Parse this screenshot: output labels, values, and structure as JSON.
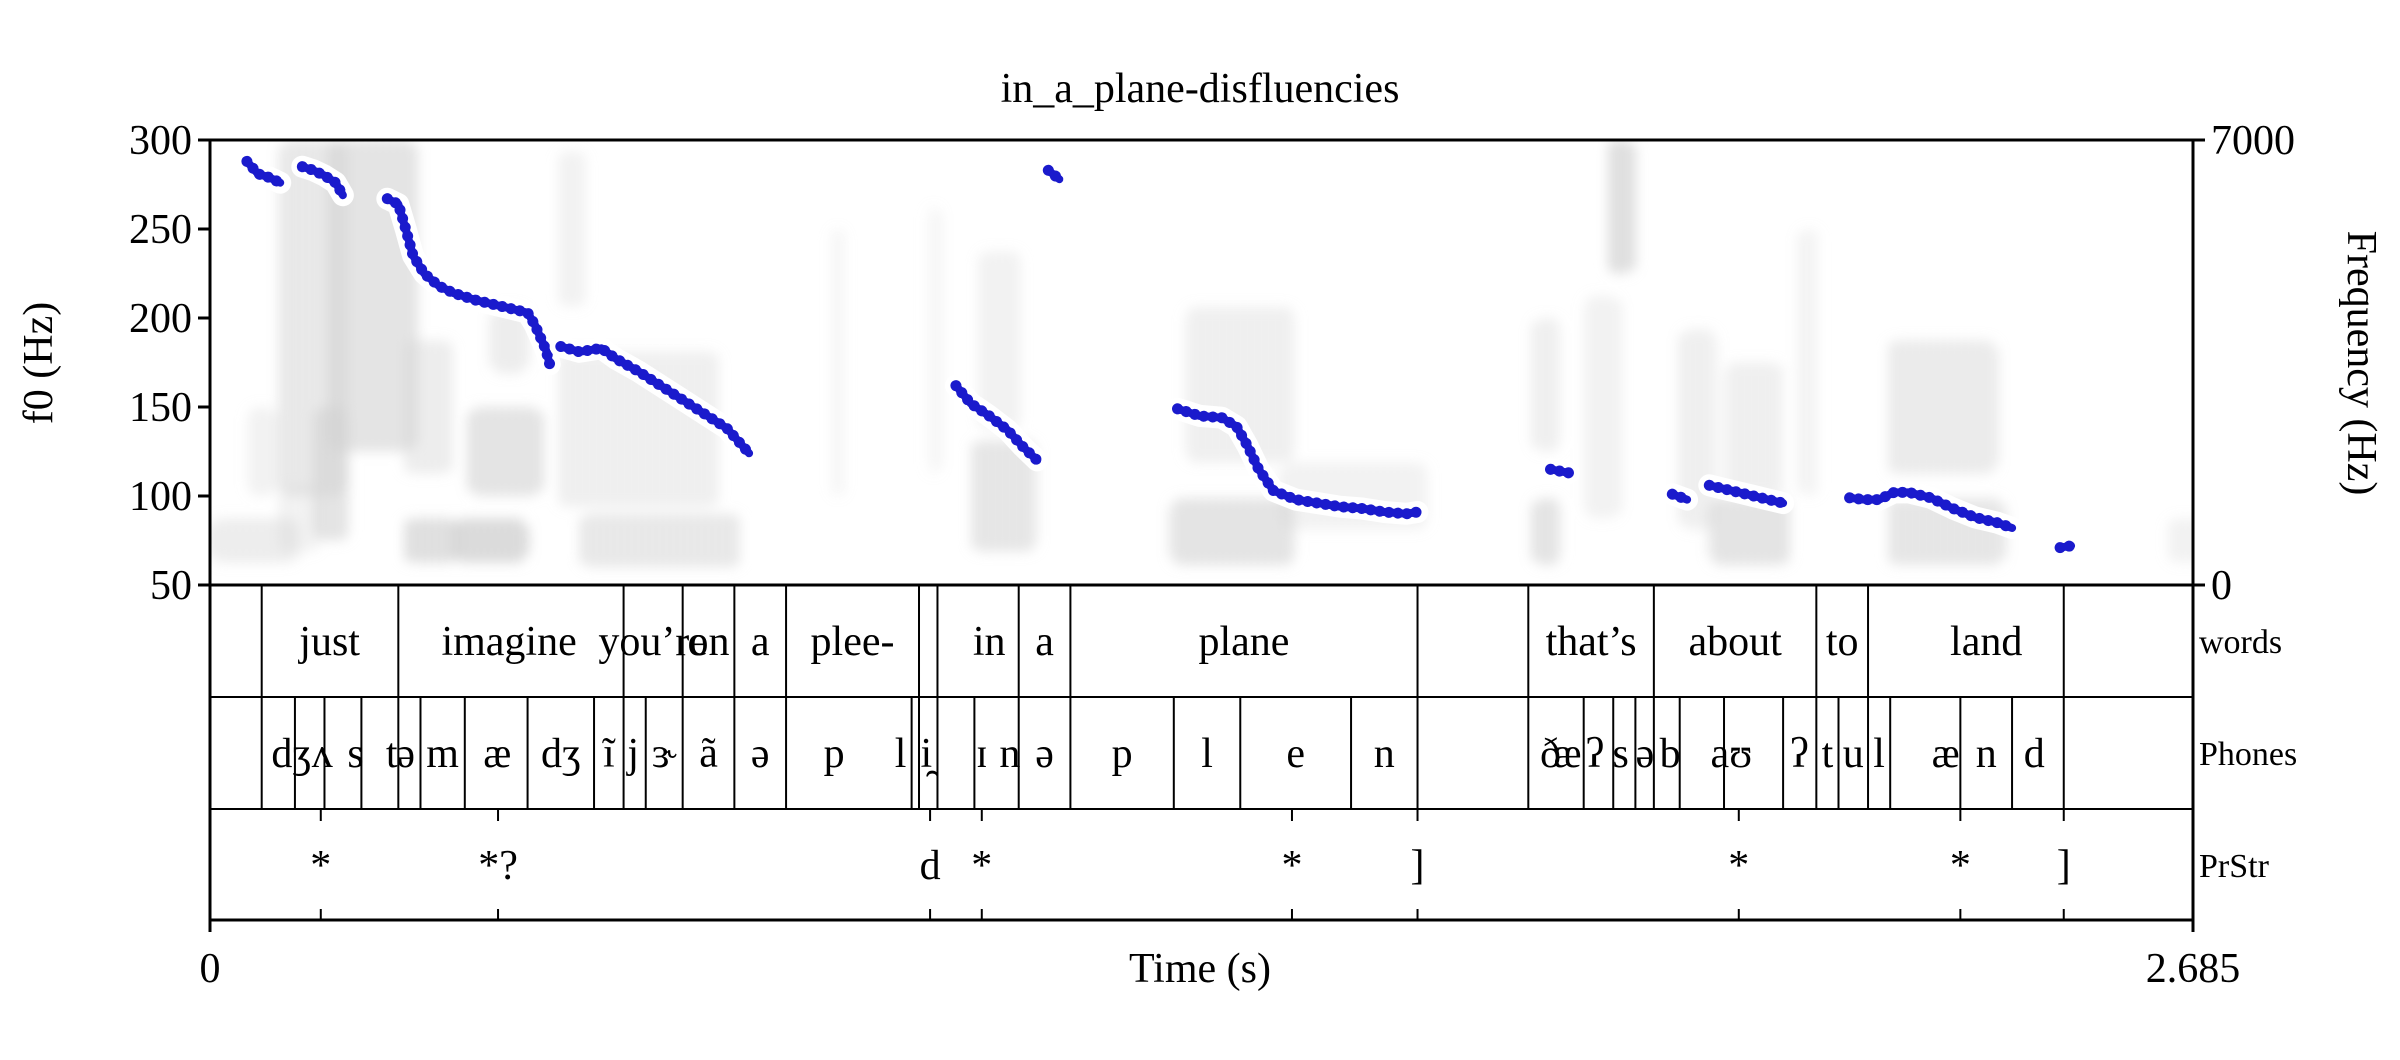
{
  "figure": {
    "title": "in_a_plane-disfluencies",
    "left_axis_label": "f0 (Hz)",
    "right_axis_label": "Frequency (Hz)",
    "x_axis_label": "Time (s)",
    "x_start_label": "0",
    "x_end_label": "2.685",
    "tier_names": [
      "words",
      "Phones",
      "PrStr"
    ]
  },
  "chart_data": {
    "type": "scatter",
    "title": "in_a_plane-disfluencies",
    "xlabel": "Time (s)",
    "ylabel": "f0 (Hz)",
    "ylabel_right": "Frequency (Hz)",
    "xlim": [
      0,
      2.685
    ],
    "ylim": [
      50,
      300
    ],
    "ylim_right": [
      0,
      7000
    ],
    "yticks": [
      50,
      100,
      150,
      200,
      250,
      300
    ],
    "yticks_right": [
      0,
      7000
    ],
    "background": "spectrogram",
    "colors": {
      "f0": "#1a1acc",
      "halo": "#ffffff",
      "spectrogram": "#333333"
    },
    "f0_segments": [
      {
        "x": [
          0.05,
          0.065,
          0.08,
          0.095
        ],
        "y": [
          288,
          281,
          279,
          276
        ]
      },
      {
        "x": [
          0.125,
          0.14,
          0.155,
          0.17,
          0.18
        ],
        "y": [
          285,
          283,
          280,
          276,
          269
        ]
      },
      {
        "x": [
          0.24,
          0.255,
          0.265,
          0.275,
          0.29,
          0.31,
          0.33,
          0.36,
          0.39,
          0.41,
          0.43,
          0.44,
          0.455,
          0.46
        ],
        "y": [
          267,
          264,
          250,
          235,
          225,
          218,
          214,
          210,
          207,
          205,
          203,
          196,
          182,
          174
        ]
      },
      {
        "x": [
          0.475,
          0.5,
          0.53,
          0.55,
          0.58,
          0.61,
          0.64,
          0.67,
          0.7,
          0.73
        ],
        "y": [
          184,
          181,
          183,
          177,
          170,
          162,
          154,
          146,
          138,
          124
        ]
      },
      {
        "x": [
          1.01,
          1.03,
          1.055,
          1.08,
          1.1,
          1.12
        ],
        "y": [
          162,
          152,
          145,
          137,
          128,
          120
        ]
      },
      {
        "x": [
          1.135,
          1.15
        ],
        "y": [
          283,
          278
        ]
      },
      {
        "x": [
          1.31,
          1.34,
          1.37,
          1.39,
          1.405,
          1.42,
          1.44,
          1.47,
          1.5,
          1.53,
          1.56,
          1.59,
          1.62,
          1.635
        ],
        "y": [
          149,
          145,
          144,
          139,
          128,
          115,
          103,
          98,
          96,
          94,
          93,
          91,
          90,
          91
        ]
      },
      {
        "x": [
          1.815,
          1.84
        ],
        "y": [
          115,
          113
        ]
      },
      {
        "x": [
          1.98,
          2.0
        ],
        "y": [
          101,
          98
        ]
      },
      {
        "x": [
          2.03,
          2.05,
          2.07,
          2.09,
          2.11,
          2.13
        ],
        "y": [
          106,
          104,
          102,
          100,
          98,
          96
        ]
      },
      {
        "x": [
          2.22,
          2.24,
          2.26,
          2.28,
          2.3,
          2.33,
          2.36,
          2.39,
          2.42,
          2.44
        ],
        "y": [
          99,
          98,
          98,
          102,
          102,
          99,
          93,
          88,
          85,
          82
        ]
      },
      {
        "x": [
          2.505,
          2.52
        ],
        "y": [
          71,
          72
        ]
      }
    ],
    "tiers": [
      {
        "name": "words",
        "boundaries": [
          0.07,
          0.255,
          0.56,
          0.64,
          0.71,
          0.78,
          0.96,
          0.985,
          1.095,
          1.165,
          1.635,
          1.785,
          1.955,
          2.175,
          2.245,
          2.51
        ],
        "labels": [
          {
            "t": 0.162,
            "text": "just"
          },
          {
            "t": 0.405,
            "text": "imagine"
          },
          {
            "t": 0.6,
            "text": "you’re"
          },
          {
            "t": 0.675,
            "text": "on"
          },
          {
            "t": 0.745,
            "text": "a"
          },
          {
            "t": 0.87,
            "text": "plee-"
          },
          {
            "t": 1.055,
            "text": "in"
          },
          {
            "t": 1.13,
            "text": "a"
          },
          {
            "t": 1.4,
            "text": "plane"
          },
          {
            "t": 1.87,
            "text": "that’s"
          },
          {
            "t": 2.065,
            "text": "about"
          },
          {
            "t": 2.21,
            "text": "to"
          },
          {
            "t": 2.405,
            "text": "land"
          }
        ]
      },
      {
        "name": "Phones",
        "boundaries": [
          0.07,
          0.115,
          0.155,
          0.205,
          0.255,
          0.285,
          0.345,
          0.43,
          0.52,
          0.56,
          0.59,
          0.64,
          0.71,
          0.78,
          0.95,
          0.96,
          0.985,
          1.035,
          1.095,
          1.165,
          1.305,
          1.395,
          1.545,
          1.635,
          1.785,
          1.86,
          1.9,
          1.93,
          1.955,
          1.99,
          2.05,
          2.13,
          2.175,
          2.205,
          2.245,
          2.275,
          2.37,
          2.44,
          2.51
        ],
        "labels": [
          {
            "t": 0.11,
            "text": "dʒ"
          },
          {
            "t": 0.152,
            "text": "ʌ"
          },
          {
            "t": 0.197,
            "text": "s"
          },
          {
            "t": 0.246,
            "text": "t"
          },
          {
            "t": 0.265,
            "text": "ə"
          },
          {
            "t": 0.315,
            "text": "m"
          },
          {
            "t": 0.389,
            "text": "æ"
          },
          {
            "t": 0.475,
            "text": "dʒ"
          },
          {
            "t": 0.54,
            "text": "ĩ"
          },
          {
            "t": 0.573,
            "text": "j"
          },
          {
            "t": 0.615,
            "text": "ɝ"
          },
          {
            "t": 0.675,
            "text": "ã"
          },
          {
            "t": 0.745,
            "text": "ə"
          },
          {
            "t": 0.845,
            "text": "p"
          },
          {
            "t": 0.935,
            "text": "l"
          },
          {
            "t": 0.97,
            "text": "i̯"
          },
          {
            "t": 1.045,
            "text": "ɪ"
          },
          {
            "t": 1.083,
            "text": "n"
          },
          {
            "t": 1.13,
            "text": "ə"
          },
          {
            "t": 1.235,
            "text": "p"
          },
          {
            "t": 1.35,
            "text": "l"
          },
          {
            "t": 1.47,
            "text": "e"
          },
          {
            "t": 1.59,
            "text": "n"
          },
          {
            "t": 1.815,
            "text": "ð"
          },
          {
            "t": 1.838,
            "text": "æ"
          },
          {
            "t": 1.875,
            "text": "ʔ"
          },
          {
            "t": 1.91,
            "text": "s"
          },
          {
            "t": 1.943,
            "text": "ə"
          },
          {
            "t": 1.977,
            "text": "b"
          },
          {
            "t": 2.06,
            "text": "aʊ"
          },
          {
            "t": 2.152,
            "text": "ʔ"
          },
          {
            "t": 2.19,
            "text": "t"
          },
          {
            "t": 2.225,
            "text": "u"
          },
          {
            "t": 2.26,
            "text": "l"
          },
          {
            "t": 2.35,
            "text": "æ"
          },
          {
            "t": 2.405,
            "text": "n"
          },
          {
            "t": 2.47,
            "text": "d"
          }
        ]
      },
      {
        "name": "PrStr",
        "points": [
          {
            "t": 0.15,
            "text": "*"
          },
          {
            "t": 0.39,
            "text": "*?"
          },
          {
            "t": 0.975,
            "text": "d"
          },
          {
            "t": 1.045,
            "text": "*"
          },
          {
            "t": 1.465,
            "text": "*"
          },
          {
            "t": 1.635,
            "text": "]"
          },
          {
            "t": 2.07,
            "text": "*"
          },
          {
            "t": 2.37,
            "text": "*"
          },
          {
            "t": 2.51,
            "text": "]"
          }
        ]
      }
    ],
    "spectrogram_energy": [
      {
        "t": 0.0,
        "f": 0.1,
        "w": 0.12,
        "h": 0.1,
        "a": 0.4
      },
      {
        "t": 0.05,
        "f": 0.3,
        "w": 0.04,
        "h": 0.2,
        "a": 0.3
      },
      {
        "t": 0.09,
        "f": 0.15,
        "w": 0.06,
        "h": 0.15,
        "a": 0.3
      },
      {
        "t": 0.095,
        "f": 0.6,
        "w": 0.09,
        "h": 0.8,
        "a": 0.5
      },
      {
        "t": 0.14,
        "f": 0.25,
        "w": 0.05,
        "h": 0.3,
        "a": 0.6
      },
      {
        "t": 0.16,
        "f": 0.65,
        "w": 0.12,
        "h": 0.7,
        "a": 0.6
      },
      {
        "t": 0.26,
        "f": 0.1,
        "w": 0.08,
        "h": 0.1,
        "a": 0.7
      },
      {
        "t": 0.26,
        "f": 0.4,
        "w": 0.07,
        "h": 0.3,
        "a": 0.4
      },
      {
        "t": 0.33,
        "f": 0.1,
        "w": 0.1,
        "h": 0.1,
        "a": 0.8
      },
      {
        "t": 0.35,
        "f": 0.3,
        "w": 0.1,
        "h": 0.2,
        "a": 0.6
      },
      {
        "t": 0.38,
        "f": 0.55,
        "w": 0.05,
        "h": 0.15,
        "a": 0.4
      },
      {
        "t": 0.47,
        "f": 0.35,
        "w": 0.22,
        "h": 0.35,
        "a": 0.35
      },
      {
        "t": 0.5,
        "f": 0.1,
        "w": 0.22,
        "h": 0.12,
        "a": 0.5
      },
      {
        "t": 0.47,
        "f": 0.8,
        "w": 0.04,
        "h": 0.35,
        "a": 0.3
      },
      {
        "t": 0.84,
        "f": 0.5,
        "w": 0.02,
        "h": 0.6,
        "a": 0.2
      },
      {
        "t": 0.97,
        "f": 0.55,
        "w": 0.02,
        "h": 0.6,
        "a": 0.2
      },
      {
        "t": 1.03,
        "f": 0.2,
        "w": 0.09,
        "h": 0.25,
        "a": 0.55
      },
      {
        "t": 1.04,
        "f": 0.55,
        "w": 0.06,
        "h": 0.4,
        "a": 0.3
      },
      {
        "t": 1.3,
        "f": 0.12,
        "w": 0.17,
        "h": 0.15,
        "a": 0.6
      },
      {
        "t": 1.32,
        "f": 0.45,
        "w": 0.15,
        "h": 0.35,
        "a": 0.35
      },
      {
        "t": 1.45,
        "f": 0.2,
        "w": 0.2,
        "h": 0.15,
        "a": 0.3
      },
      {
        "t": 1.79,
        "f": 0.12,
        "w": 0.04,
        "h": 0.15,
        "a": 0.6
      },
      {
        "t": 1.79,
        "f": 0.45,
        "w": 0.04,
        "h": 0.3,
        "a": 0.35
      },
      {
        "t": 1.89,
        "f": 0.85,
        "w": 0.04,
        "h": 0.3,
        "a": 0.7
      },
      {
        "t": 1.86,
        "f": 0.4,
        "w": 0.05,
        "h": 0.5,
        "a": 0.3
      },
      {
        "t": 1.99,
        "f": 0.35,
        "w": 0.05,
        "h": 0.45,
        "a": 0.35
      },
      {
        "t": 2.03,
        "f": 0.12,
        "w": 0.11,
        "h": 0.15,
        "a": 0.6
      },
      {
        "t": 2.05,
        "f": 0.35,
        "w": 0.08,
        "h": 0.3,
        "a": 0.35
      },
      {
        "t": 2.15,
        "f": 0.5,
        "w": 0.03,
        "h": 0.6,
        "a": 0.25
      },
      {
        "t": 2.27,
        "f": 0.12,
        "w": 0.16,
        "h": 0.15,
        "a": 0.55
      },
      {
        "t": 2.27,
        "f": 0.4,
        "w": 0.15,
        "h": 0.3,
        "a": 0.45
      },
      {
        "t": 2.65,
        "f": 0.1,
        "w": 0.05,
        "h": 0.1,
        "a": 0.3
      }
    ]
  }
}
